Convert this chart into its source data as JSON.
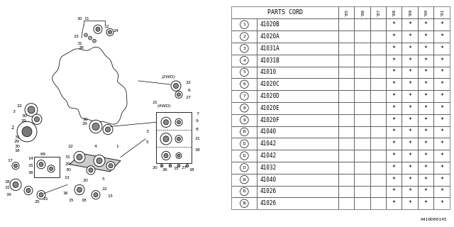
{
  "background_color": "#ffffff",
  "parts_cord_header": "PARTS CORD",
  "year_cols": [
    "'85",
    "'86",
    "'87",
    "'88",
    "'89",
    "'90",
    "'91"
  ],
  "rows": [
    {
      "num": 1,
      "code": "41020B",
      "stars": [
        false,
        false,
        false,
        true,
        true,
        true,
        true
      ]
    },
    {
      "num": 2,
      "code": "41020A",
      "stars": [
        false,
        false,
        false,
        true,
        true,
        true,
        true
      ]
    },
    {
      "num": 3,
      "code": "41031A",
      "stars": [
        false,
        false,
        false,
        true,
        true,
        true,
        true
      ]
    },
    {
      "num": 4,
      "code": "41031B",
      "stars": [
        false,
        false,
        false,
        true,
        true,
        true,
        true
      ]
    },
    {
      "num": 5,
      "code": "41010",
      "stars": [
        false,
        false,
        false,
        true,
        true,
        true,
        true
      ]
    },
    {
      "num": 6,
      "code": "41020C",
      "stars": [
        false,
        false,
        false,
        true,
        true,
        true,
        true
      ]
    },
    {
      "num": 7,
      "code": "41020D",
      "stars": [
        false,
        false,
        false,
        true,
        true,
        true,
        true
      ]
    },
    {
      "num": 8,
      "code": "41020E",
      "stars": [
        false,
        false,
        false,
        true,
        true,
        true,
        true
      ]
    },
    {
      "num": 9,
      "code": "41020F",
      "stars": [
        false,
        false,
        false,
        true,
        true,
        true,
        true
      ]
    },
    {
      "num": 10,
      "code": "41040",
      "stars": [
        false,
        false,
        false,
        true,
        true,
        true,
        true
      ]
    },
    {
      "num": 11,
      "code": "41042",
      "stars": [
        false,
        false,
        false,
        true,
        true,
        true,
        true
      ]
    },
    {
      "num": 12,
      "code": "41042",
      "stars": [
        false,
        false,
        false,
        true,
        true,
        true,
        true
      ]
    },
    {
      "num": 13,
      "code": "41032",
      "stars": [
        false,
        false,
        false,
        true,
        true,
        true,
        true
      ]
    },
    {
      "num": 14,
      "code": "41040",
      "stars": [
        false,
        false,
        false,
        true,
        true,
        true,
        true
      ]
    },
    {
      "num": 15,
      "code": "41026",
      "stars": [
        false,
        false,
        false,
        true,
        true,
        true,
        true
      ]
    },
    {
      "num": 16,
      "code": "41026",
      "stars": [
        false,
        false,
        false,
        true,
        true,
        true,
        true
      ]
    }
  ],
  "diagram_label": "A410D00145",
  "grid_color": "#555555",
  "text_color": "#000000"
}
